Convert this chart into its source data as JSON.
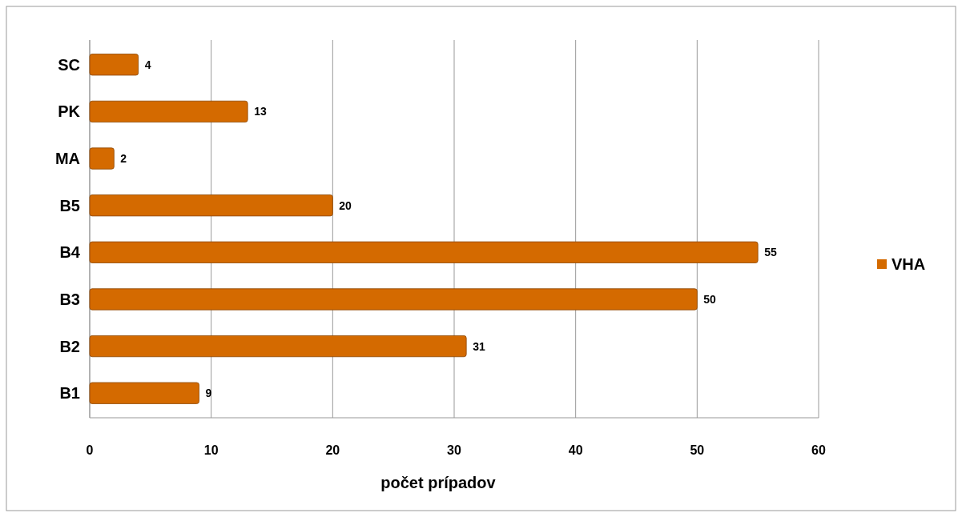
{
  "chart_data": {
    "type": "bar",
    "orientation": "horizontal",
    "xlabel": "počet prípadov",
    "categories": [
      "SC",
      "PK",
      "MA",
      "B5",
      "B4",
      "B3",
      "B2",
      "B1"
    ],
    "series": [
      {
        "name": "VHA",
        "color": "#d46a00",
        "values": [
          4,
          13,
          2,
          20,
          55,
          50,
          31,
          9
        ]
      }
    ],
    "xlim": [
      0,
      60
    ],
    "xticks": [
      0,
      10,
      20,
      30,
      40,
      50,
      60
    ],
    "grid": "x",
    "legend": "right",
    "data_labels": true
  }
}
